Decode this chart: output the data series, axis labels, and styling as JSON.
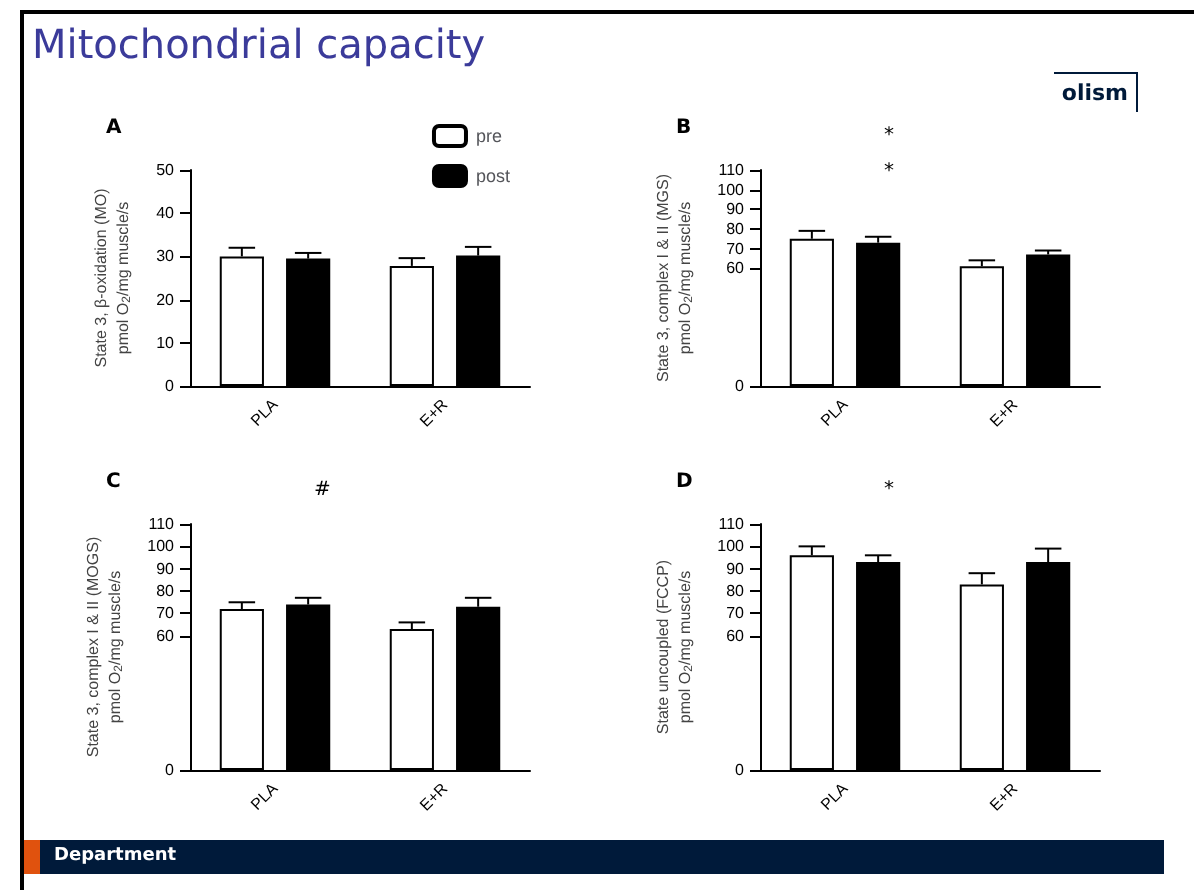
{
  "chart_data": [
    {
      "type": "other",
      "title": "Mitochondrial capacity",
      "annotations": [
        "olism",
        "Department"
      ]
    },
    {
      "type": "bar",
      "title": "A",
      "categories": [
        "PLA",
        "E+R"
      ],
      "ylabel": "State 3, β-oxidation (MO)\npmol O$_{2}$/mg muscle/s",
      "ylim": [
        0,
        50
      ],
      "yticks": [
        0,
        10,
        20,
        30,
        40,
        50
      ],
      "legend": "top right",
      "grid": false,
      "series": [
        {
          "name": "pre",
          "color": "#ffffff",
          "values": [
            30,
            27.8
          ],
          "errors": [
            [
              30,
              32
            ],
            [
              27.8,
              29.6
            ]
          ]
        },
        {
          "name": "post",
          "color": "#000000",
          "values": [
            29.5,
            30.2
          ],
          "errors": [
            [
              29.5,
              30.8
            ],
            [
              30.2,
              32.2
            ]
          ]
        }
      ]
    },
    {
      "type": "bar",
      "title": "B",
      "categories": [
        "PLA",
        "E+R"
      ],
      "ylabel": "State 3, complex I & II (MGS)\npmol O$_{2}$/mg muscle/s",
      "ylim": [
        0,
        110
      ],
      "yticks": [
        0,
        60,
        70,
        80,
        90,
        100,
        110
      ],
      "grid": false,
      "annotations": [
        "*",
        "*"
      ],
      "series": [
        {
          "color": "#ffffff",
          "values": [
            75,
            61
          ],
          "errors": [
            [
              75,
              79
            ],
            [
              61,
              64
            ]
          ]
        },
        {
          "color": "#000000",
          "values": [
            73,
            67
          ],
          "errors": [
            [
              73,
              76
            ],
            [
              67,
              69
            ]
          ]
        }
      ]
    },
    {
      "type": "bar",
      "title": "C",
      "categories": [
        "PLA",
        "E+R"
      ],
      "ylabel": "State 3, complex I & II (MOGS)\npmol O$_{2}$/mg muscle/s",
      "ylim": [
        0,
        110
      ],
      "yticks": [
        0,
        60,
        70,
        80,
        90,
        100,
        110
      ],
      "grid": false,
      "annotations": [
        "#"
      ],
      "series": [
        {
          "color": "#ffffff",
          "values": [
            72,
            63
          ],
          "errors": [
            [
              72,
              75
            ],
            [
              63,
              66
            ]
          ]
        },
        {
          "color": "#000000",
          "values": [
            74,
            73
          ],
          "errors": [
            [
              74,
              77
            ],
            [
              73,
              77
            ]
          ]
        }
      ]
    },
    {
      "type": "bar",
      "title": "D",
      "categories": [
        "PLA",
        "E+R"
      ],
      "ylabel": "State uncoupled (FCCP)\npmol O$_{2}$/mg muscle/s",
      "ylim": [
        0,
        110
      ],
      "yticks": [
        0,
        60,
        70,
        80,
        90,
        100,
        110
      ],
      "grid": false,
      "annotations": [
        "*"
      ],
      "series": [
        {
          "color": "#ffffff",
          "values": [
            96,
            83
          ],
          "errors": [
            [
              96,
              100
            ],
            [
              83,
              88
            ]
          ]
        },
        {
          "color": "#000000",
          "values": [
            93,
            93
          ],
          "errors": [
            [
              93,
              96
            ],
            [
              93,
              99
            ]
          ]
        }
      ]
    }
  ]
}
